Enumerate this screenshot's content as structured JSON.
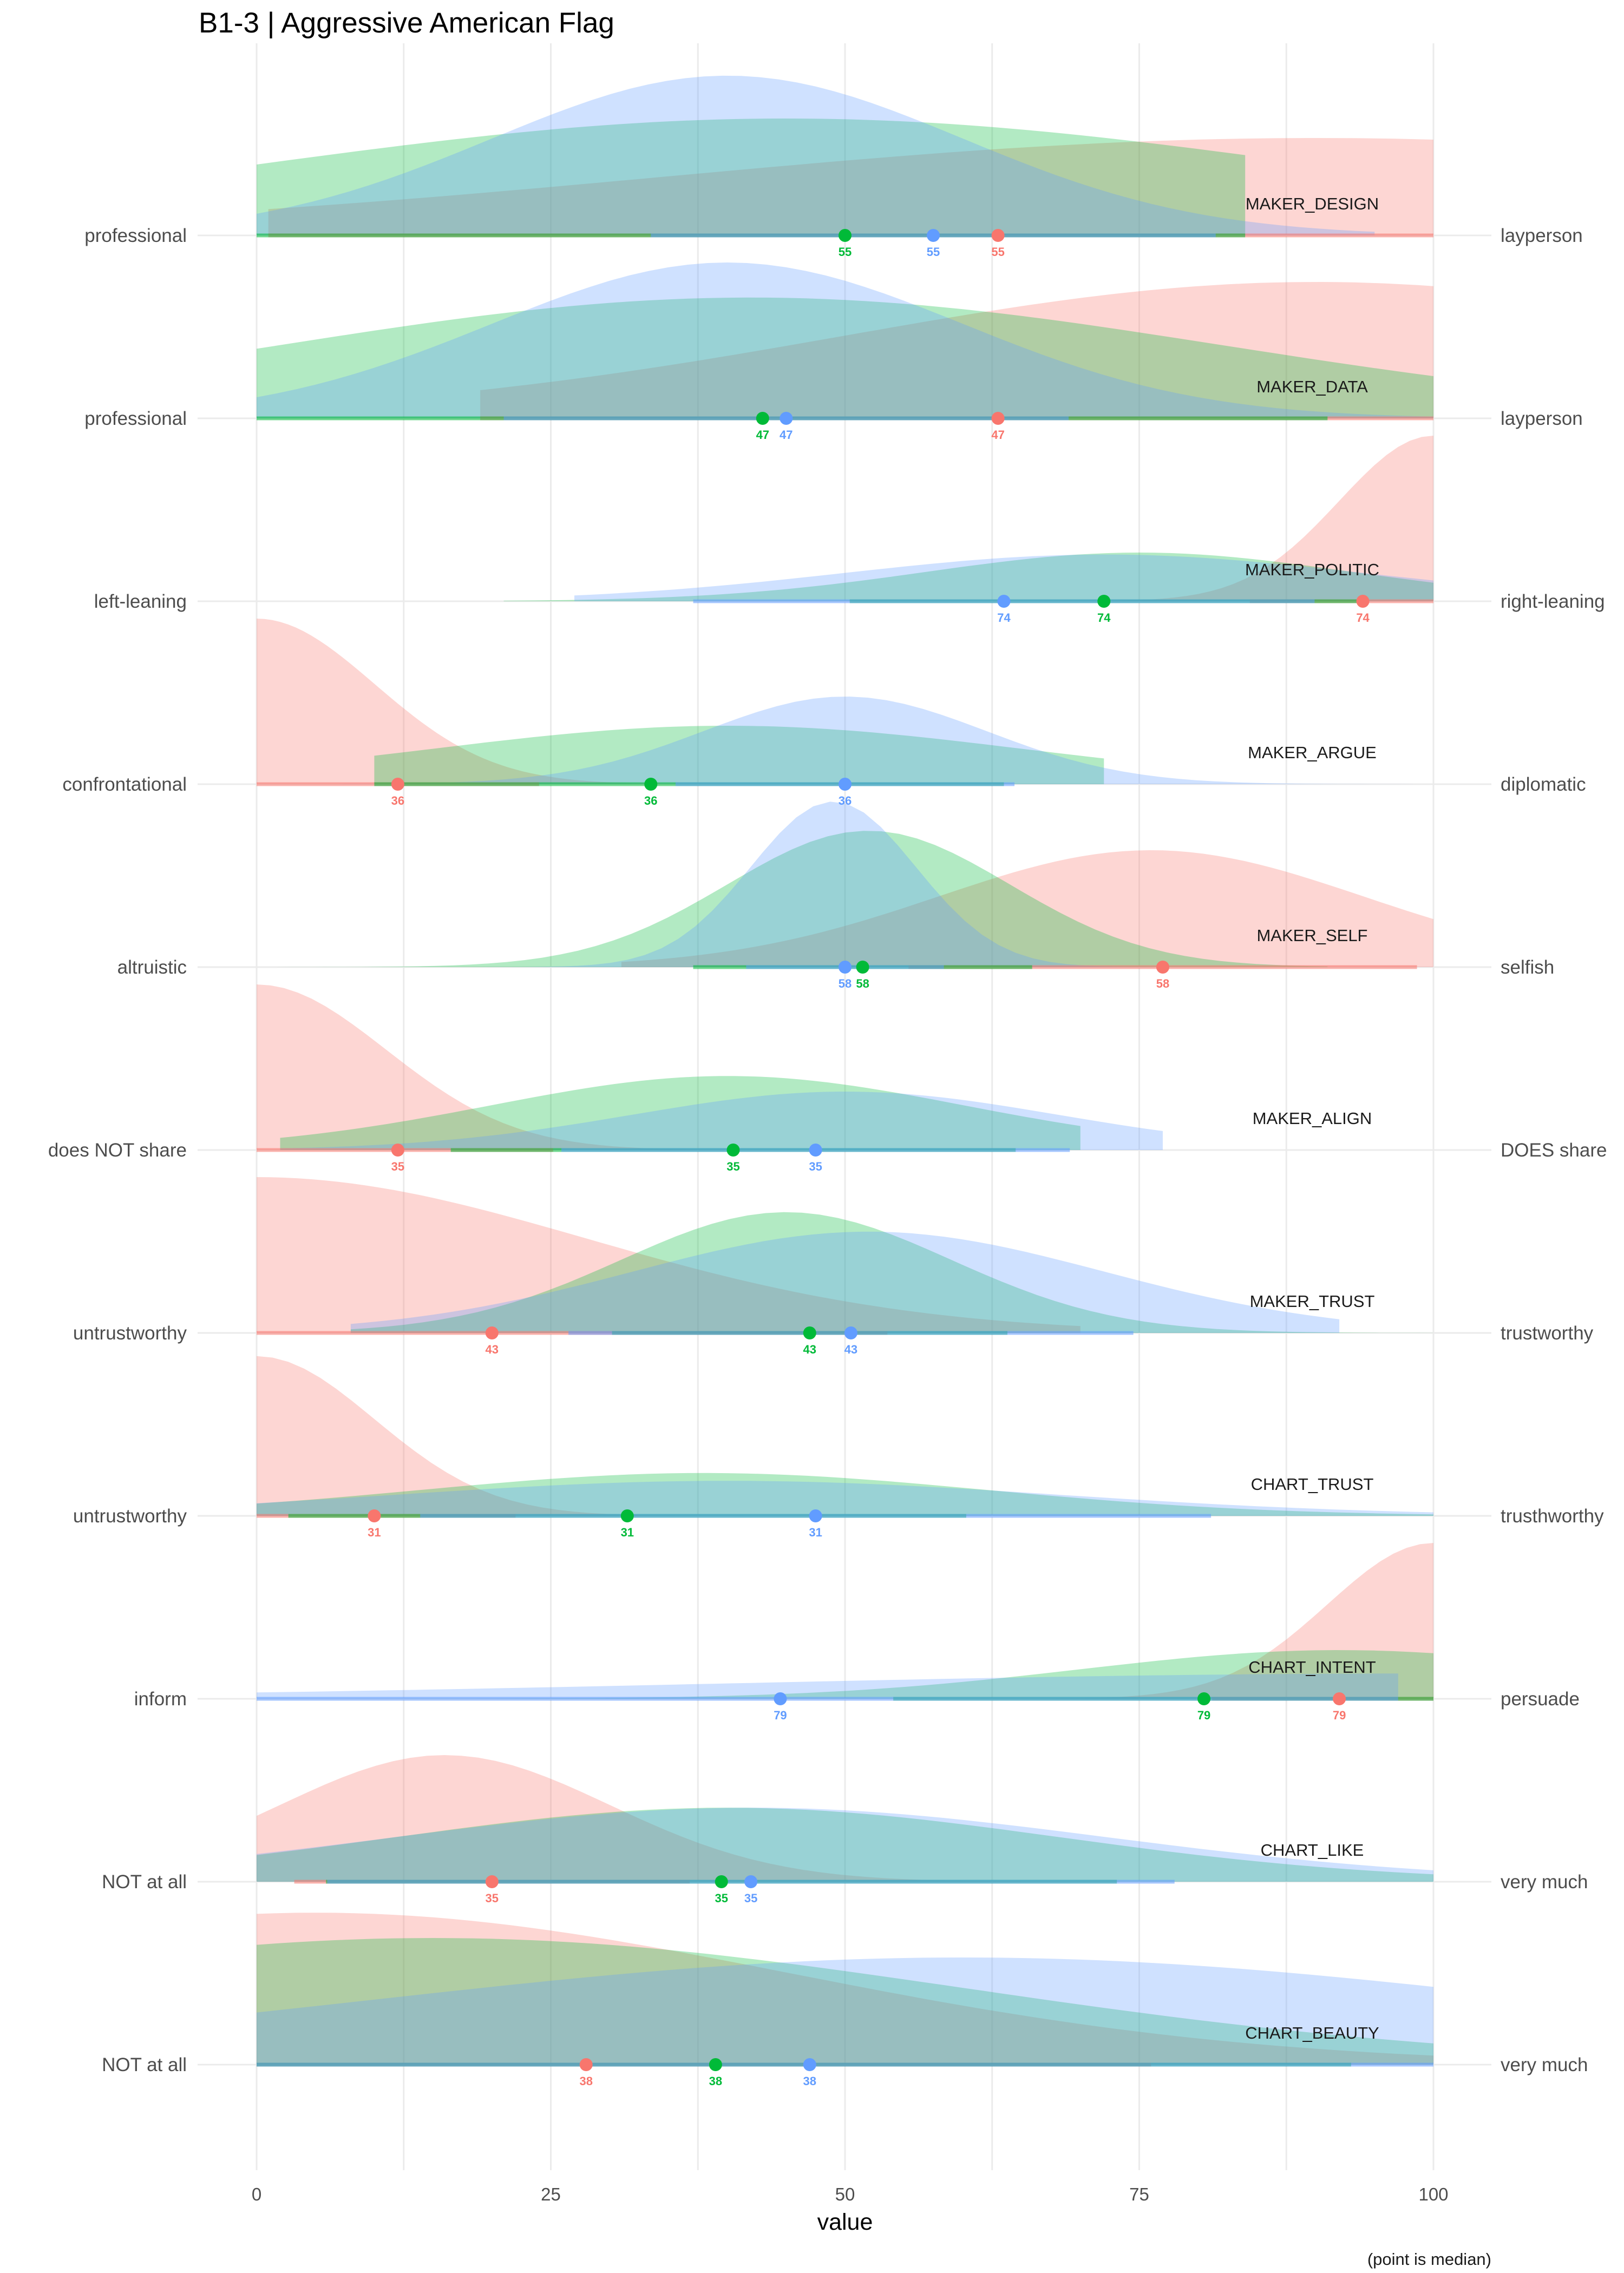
{
  "chart_data": {
    "type": "ridgeline",
    "title": "B1-3 | Aggressive American Flag",
    "xlabel": "value",
    "caption": "(point is median)",
    "xlim": [
      0,
      100
    ],
    "x_ticks": [
      0,
      25,
      50,
      75,
      100
    ],
    "grid": true,
    "groups": [
      {
        "color": "#F8766D"
      },
      {
        "color": "#00BA38"
      },
      {
        "color": "#619CFF"
      }
    ],
    "rows": [
      {
        "facet": "MAKER_DESIGN",
        "left": "professional",
        "right": "layperson",
        "label": "55",
        "medians": [
          63,
          50,
          57.5
        ],
        "ranges": [
          [
            1,
            100
          ],
          [
            0,
            84
          ],
          [
            0,
            95
          ]
        ],
        "peaks": [
          90,
          45,
          40
        ],
        "spread": [
          55,
          45,
          20
        ],
        "heights": [
          0.5,
          0.6,
          0.82
        ]
      },
      {
        "facet": "MAKER_DATA",
        "left": "professional",
        "right": "layperson",
        "label": "47",
        "medians": [
          63,
          43,
          45
        ],
        "ranges": [
          [
            19,
            100
          ],
          [
            0,
            100
          ],
          [
            0,
            100
          ]
        ],
        "peaks": [
          90,
          42,
          40
        ],
        "spread": [
          40,
          40,
          20
        ],
        "heights": [
          0.7,
          0.62,
          0.8
        ]
      },
      {
        "facet": "MAKER_POLITIC",
        "left": "left-leaning",
        "right": "right-leaning",
        "label": "74",
        "medians": [
          94,
          72,
          63.5
        ],
        "ranges": [
          [
            40,
            100
          ],
          [
            21,
            100
          ],
          [
            27,
            100
          ]
        ],
        "peaks": [
          100,
          75,
          72
        ],
        "spread": [
          8,
          18,
          22
        ],
        "heights": [
          0.85,
          0.25,
          0.24
        ]
      },
      {
        "facet": "MAKER_ARGUE",
        "left": "confrontational",
        "right": "diplomatic",
        "label": "36",
        "medians": [
          12,
          33.5,
          50
        ],
        "ranges": [
          [
            0,
            40
          ],
          [
            10,
            72
          ],
          [
            7,
            100
          ]
        ],
        "peaks": [
          0,
          40,
          50
        ],
        "spread": [
          10,
          25,
          12
        ],
        "heights": [
          0.85,
          0.3,
          0.45
        ]
      },
      {
        "facet": "MAKER_SELF",
        "left": "altruistic",
        "right": "selfish",
        "label": "58",
        "medians": [
          77,
          51.5,
          50
        ],
        "ranges": [
          [
            31,
            100
          ],
          [
            0,
            91
          ],
          [
            0,
            86
          ]
        ],
        "peaks": [
          76,
          52,
          49
        ],
        "spread": [
          18,
          12,
          7
        ],
        "heights": [
          0.6,
          0.7,
          0.85
        ]
      },
      {
        "facet": "MAKER_ALIGN",
        "left": "does NOT share",
        "right": "DOES share",
        "label": "35",
        "medians": [
          12,
          40.5,
          47.5
        ],
        "ranges": [
          [
            0,
            70
          ],
          [
            2,
            70
          ],
          [
            2,
            77
          ]
        ],
        "peaks": [
          0,
          40,
          50
        ],
        "spread": [
          11,
          20,
          18
        ],
        "heights": [
          0.85,
          0.38,
          0.3
        ]
      },
      {
        "facet": "MAKER_TRUST",
        "left": "untrustworthy",
        "right": "trustworthy",
        "label": "43",
        "medians": [
          20,
          47,
          50.5
        ],
        "ranges": [
          [
            0,
            70
          ],
          [
            8,
            100
          ],
          [
            8,
            92
          ]
        ],
        "peaks": [
          0,
          45,
          52
        ],
        "spread": [
          28,
          14,
          20
        ],
        "heights": [
          0.8,
          0.62,
          0.52
        ]
      },
      {
        "facet": "CHART_TRUST",
        "left": "untrustworthy",
        "right": "trusthworthy",
        "label": "31",
        "medians": [
          10,
          31.5,
          47.5
        ],
        "ranges": [
          [
            0,
            81
          ],
          [
            0,
            100
          ],
          [
            0,
            100
          ]
        ],
        "peaks": [
          0,
          38,
          40
        ],
        "spread": [
          10,
          24,
          28
        ],
        "heights": [
          0.82,
          0.22,
          0.18
        ]
      },
      {
        "facet": "CHART_INTENT",
        "left": "inform",
        "right": "persuade",
        "label": "79",
        "medians": [
          92,
          80.5,
          44.5
        ],
        "ranges": [
          [
            32,
            100
          ],
          [
            0,
            100
          ],
          [
            0,
            97
          ]
        ],
        "peaks": [
          100,
          92,
          100
        ],
        "spread": [
          9,
          22,
          60
        ],
        "heights": [
          0.8,
          0.25,
          0.13
        ]
      },
      {
        "facet": "CHART_LIKE",
        "left": "NOT at all",
        "right": "very much",
        "label": "35",
        "medians": [
          20,
          39.5,
          42
        ],
        "ranges": [
          [
            0,
            87
          ],
          [
            0,
            100
          ],
          [
            0,
            100
          ]
        ],
        "peaks": [
          16,
          40,
          42
        ],
        "spread": [
          14,
          28,
          30
        ],
        "heights": [
          0.65,
          0.38,
          0.38
        ]
      },
      {
        "facet": "CHART_BEAUTY",
        "left": "NOT at all",
        "right": "very much",
        "label": "38",
        "medians": [
          28,
          39,
          47
        ],
        "ranges": [
          [
            0,
            100
          ],
          [
            0,
            100
          ],
          [
            0,
            100
          ]
        ],
        "peaks": [
          5,
          15,
          60
        ],
        "spread": [
          40,
          45,
          50
        ],
        "heights": [
          0.78,
          0.65,
          0.55
        ]
      }
    ]
  }
}
